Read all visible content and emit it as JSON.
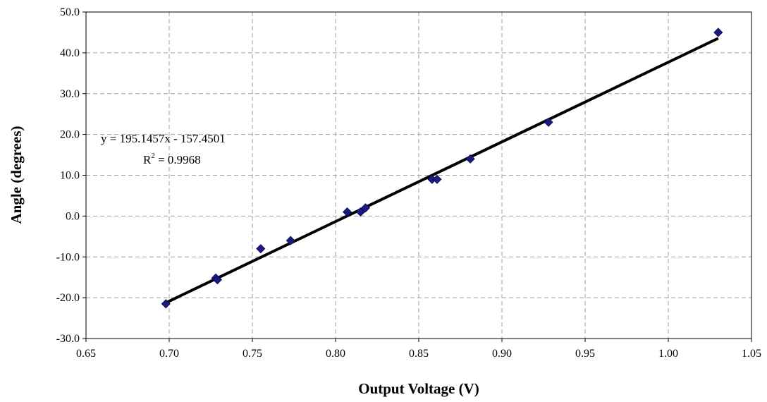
{
  "chart_data": {
    "type": "scatter",
    "xlabel": "Output Voltage (V)",
    "ylabel": "Angle (degrees)",
    "xlim": [
      0.65,
      1.05
    ],
    "ylim": [
      -30,
      50
    ],
    "x_ticks": [
      "0.65",
      "0.70",
      "0.75",
      "0.80",
      "0.85",
      "0.90",
      "0.95",
      "1.00",
      "1.05"
    ],
    "y_ticks": [
      "-30.0",
      "-20.0",
      "-10.0",
      "0.0",
      "10.0",
      "20.0",
      "30.0",
      "40.0",
      "50.0"
    ],
    "grid": true,
    "series": [
      {
        "marker": "diamond",
        "color": "#1a1a80",
        "points": [
          {
            "x": 0.698,
            "y": -21.5
          },
          {
            "x": 0.728,
            "y": -15.2
          },
          {
            "x": 0.729,
            "y": -15.6
          },
          {
            "x": 0.755,
            "y": -8.0
          },
          {
            "x": 0.773,
            "y": -6.0
          },
          {
            "x": 0.807,
            "y": 1.0
          },
          {
            "x": 0.815,
            "y": 1.0
          },
          {
            "x": 0.818,
            "y": 2.0
          },
          {
            "x": 0.858,
            "y": 9.0
          },
          {
            "x": 0.861,
            "y": 9.0
          },
          {
            "x": 0.881,
            "y": 14.0
          },
          {
            "x": 0.928,
            "y": 23.0
          },
          {
            "x": 1.03,
            "y": 45.0
          }
        ]
      }
    ],
    "trendline": {
      "slope": 195.1457,
      "intercept": -157.4501,
      "x_range": [
        0.698,
        1.03
      ],
      "color": "#000000"
    },
    "equation_text": "y = 195.1457x - 157.4501",
    "r2_prefix": "R",
    "r2_sup": "2",
    "r2_suffix": " = 0.9968"
  }
}
